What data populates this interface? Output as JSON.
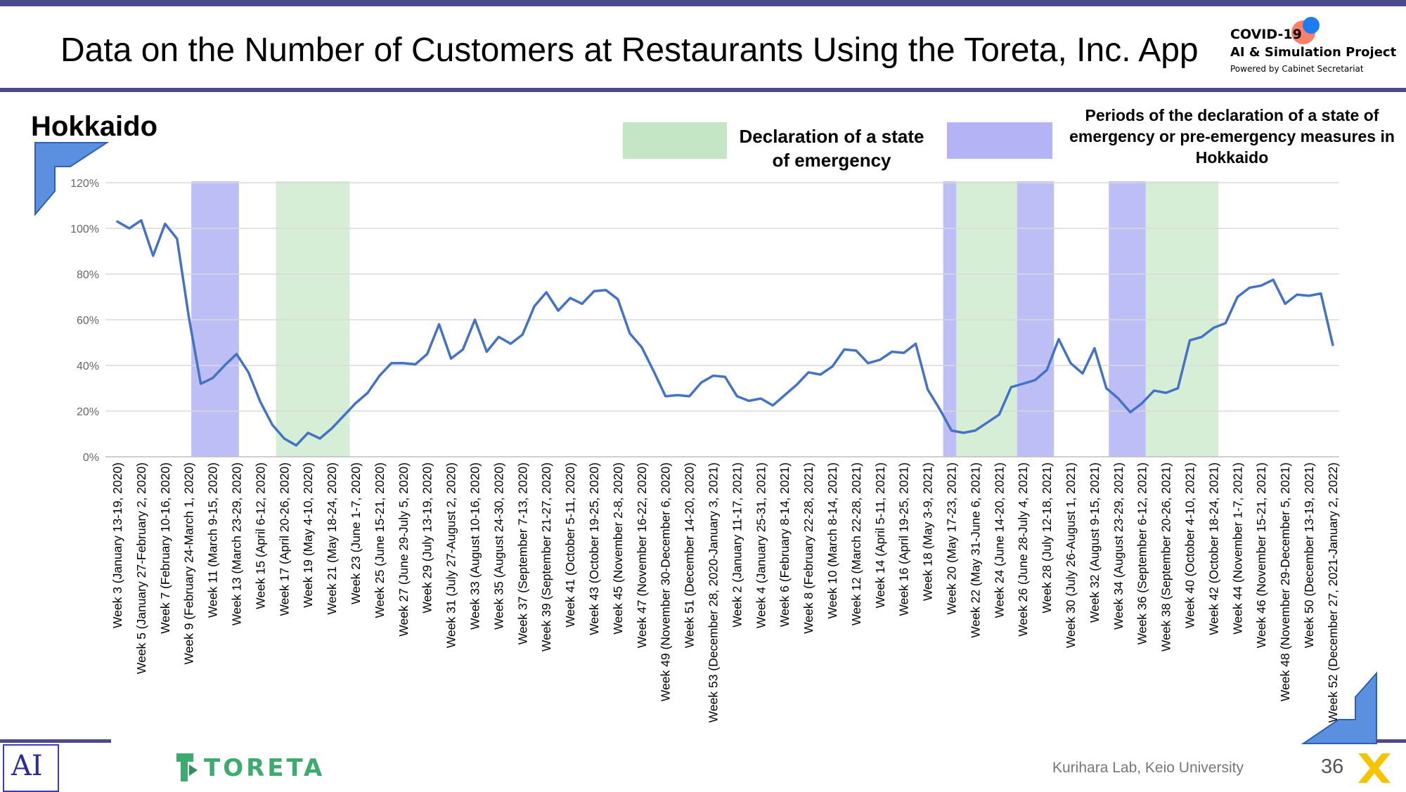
{
  "header": {
    "title": "Data on the Number of Customers at Restaurants Using the Toreta, Inc. App",
    "logo": {
      "line1": "COVID-19",
      "line2": "AI & Simulation Project",
      "line3": "Powered by Cabinet Secretariat"
    }
  },
  "region": "Hokkaido",
  "legend": {
    "emergency_label": "Declaration of a state of emergency",
    "emergency_color": "#c5e6c5",
    "pre_label": "Periods of the declaration of a state of emergency or pre-emergency measures in Hokkaido",
    "pre_color": "#b3b3f5"
  },
  "footer": {
    "brand": "TORETA",
    "credit": "Kurihara Lab, Keio University",
    "page_number": "36"
  },
  "chart_data": {
    "type": "line",
    "ylabel": "",
    "xlabel": "",
    "ylim": [
      0,
      120
    ],
    "yticks": [
      "0%",
      "20%",
      "40%",
      "60%",
      "80%",
      "100%",
      "120%"
    ],
    "grid": true,
    "line_color": "#4472c4",
    "x_tick_labels": [
      "Week 3 (January 13-19, 2020)",
      "Week 5 (January 27-February 2, 2020)",
      "Week 7 (February 10-16, 2020)",
      "Week 9 (February 24-March 1, 2020)",
      "Week 11 (March 9-15, 2020)",
      "Week 13 (March 23-29, 2020)",
      "Week 15 (April 6-12, 2020)",
      "Week 17 (April 20-26, 2020)",
      "Week 19 (May 4-10, 2020)",
      "Week 21 (May 18-24, 2020)",
      "Week 23 (June 1-7, 2020)",
      "Week 25 (June 15-21, 2020)",
      "Week 27 (June 29-July 5, 2020)",
      "Week 29 (July 13-19, 2020)",
      "Week 31 (July 27-August 2, 2020)",
      "Week 33 (August 10-16, 2020)",
      "Week 35 (August 24-30, 2020)",
      "Week 37 (September 7-13, 2020)",
      "Week 39 (September 21-27, 2020)",
      "Week 41 (October 5-11, 2020)",
      "Week 43 (October 19-25, 2020)",
      "Week 45 (November 2-8, 2020)",
      "Week 47 (November 16-22, 2020)",
      "Week 49 (November 30-December 6, 2020)",
      "Week 51 (December 14-20, 2020)",
      "Week 53 (December 28, 2020-January 3, 2021)",
      "Week 2 (January 11-17, 2021)",
      "Week 4 (January 25-31, 2021)",
      "Week 6 (February 8-14, 2021)",
      "Week 8 (February 22-28, 2021)",
      "Week 10 (March 8-14, 2021)",
      "Week 12 (March 22-28, 2021)",
      "Week 14 (April 5-11, 2021)",
      "Week 16 (April 19-25, 2021)",
      "Week 18 (May 3-9, 2021)",
      "Week 20 (May 17-23, 2021)",
      "Week 22 (May 31-June 6, 2021)",
      "Week 24 (June 14-20, 2021)",
      "Week 26 (June 28-July 4, 2021)",
      "Week 28 (July 12-18, 2021)",
      "Week 30 (July 26-August 1, 2021)",
      "Week 32 (August 9-15, 2021)",
      "Week 34 (August 23-29, 2021)",
      "Week 36 (September 6-12, 2021)",
      "Week 38 (September 20-26, 2021)",
      "Week 40 (October 4-10, 2021)",
      "Week 42 (October 18-24, 2021)",
      "Week 44 (November 1-7, 2021)",
      "Week 46 (November 15-21, 2021)",
      "Week 48 (November 29-December 5, 2021)",
      "Week 50 (December 13-19, 2021)",
      "Week 52 (December 27, 2021-January 2, 2022)"
    ],
    "values": [
      103,
      100,
      103.5,
      88,
      102,
      95.5,
      61,
      32,
      34.5,
      40,
      45,
      37,
      24,
      14,
      8,
      5,
      10.5,
      8,
      12.5,
      18,
      23.5,
      28,
      35.5,
      41,
      41,
      40.5,
      45,
      58,
      43,
      47,
      60,
      46,
      52.5,
      49.5,
      53.5,
      66,
      72,
      64,
      69.5,
      67,
      72.5,
      73,
      69,
      54,
      48,
      37.5,
      26.5,
      27,
      26.5,
      32.5,
      35.5,
      35,
      26.5,
      24.5,
      25.5,
      22.5,
      27,
      31.5,
      37,
      36,
      39.5,
      47,
      46.5,
      41,
      42.5,
      46,
      45.5,
      49.5,
      29.5,
      21,
      11.5,
      10.5,
      11.5,
      15,
      18.5,
      30.5,
      32,
      33.5,
      38,
      51.5,
      41,
      36.5,
      47.5,
      30,
      25.5,
      19.5,
      23.5,
      29,
      28,
      30,
      51,
      52.5,
      56.5,
      58.5,
      70,
      74,
      75,
      77.5,
      67,
      71,
      70.5,
      71.5,
      49
    ],
    "shaded_periods": [
      {
        "type": "pre-emergency",
        "from_index": 6.2,
        "to_index": 10.2
      },
      {
        "type": "emergency",
        "from_index": 13.3,
        "to_index": 19.5
      },
      {
        "type": "pre-emergency",
        "from_index": 69.3,
        "to_index": 70.4
      },
      {
        "type": "emergency",
        "from_index": 70.4,
        "to_index": 75.5
      },
      {
        "type": "pre-emergency",
        "from_index": 75.5,
        "to_index": 78.6
      },
      {
        "type": "pre-emergency",
        "from_index": 83.2,
        "to_index": 86.3
      },
      {
        "type": "emergency",
        "from_index": 86.3,
        "to_index": 92.4
      }
    ]
  }
}
